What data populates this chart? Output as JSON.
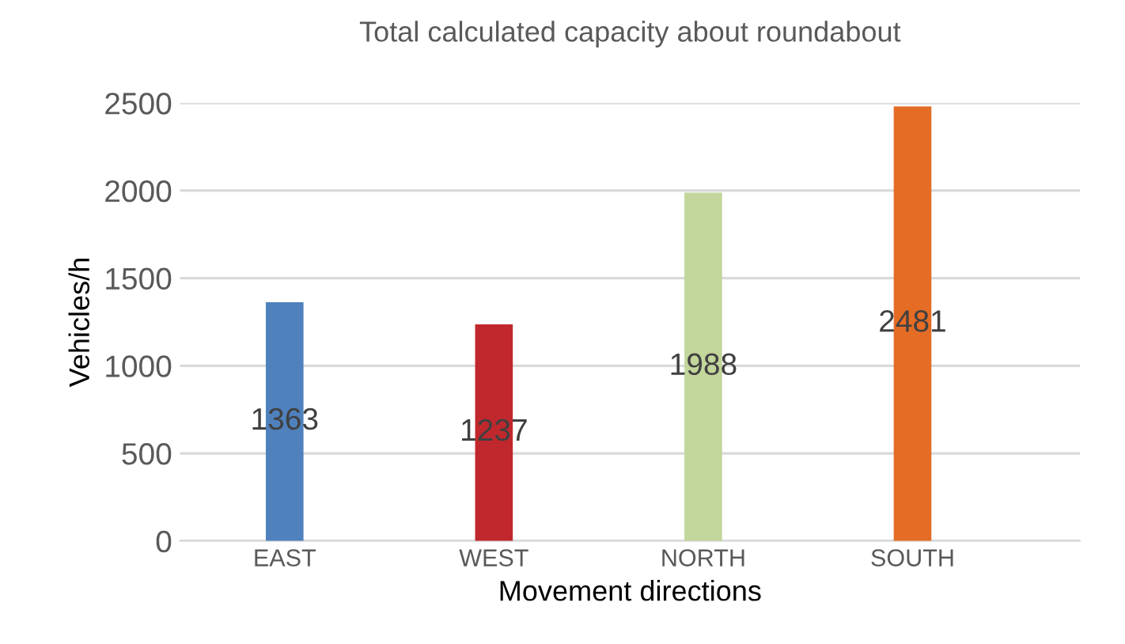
{
  "chart_data": {
    "type": "bar",
    "title": "Total calculated capacity about roundabout",
    "xlabel": "Movement directions",
    "ylabel": "Vehicles/h",
    "categories": [
      "EAST",
      "WEST",
      "NORTH",
      "SOUTH"
    ],
    "values": [
      1363,
      1237,
      1988,
      2481
    ],
    "colors": [
      "#4f81bd",
      "#c0282d",
      "#c3d69b",
      "#e46c25"
    ],
    "ylim": [
      0,
      2500
    ],
    "yticks": [
      0,
      500,
      1000,
      1500,
      2000,
      2500
    ],
    "grid": "y",
    "data_labels": true
  }
}
